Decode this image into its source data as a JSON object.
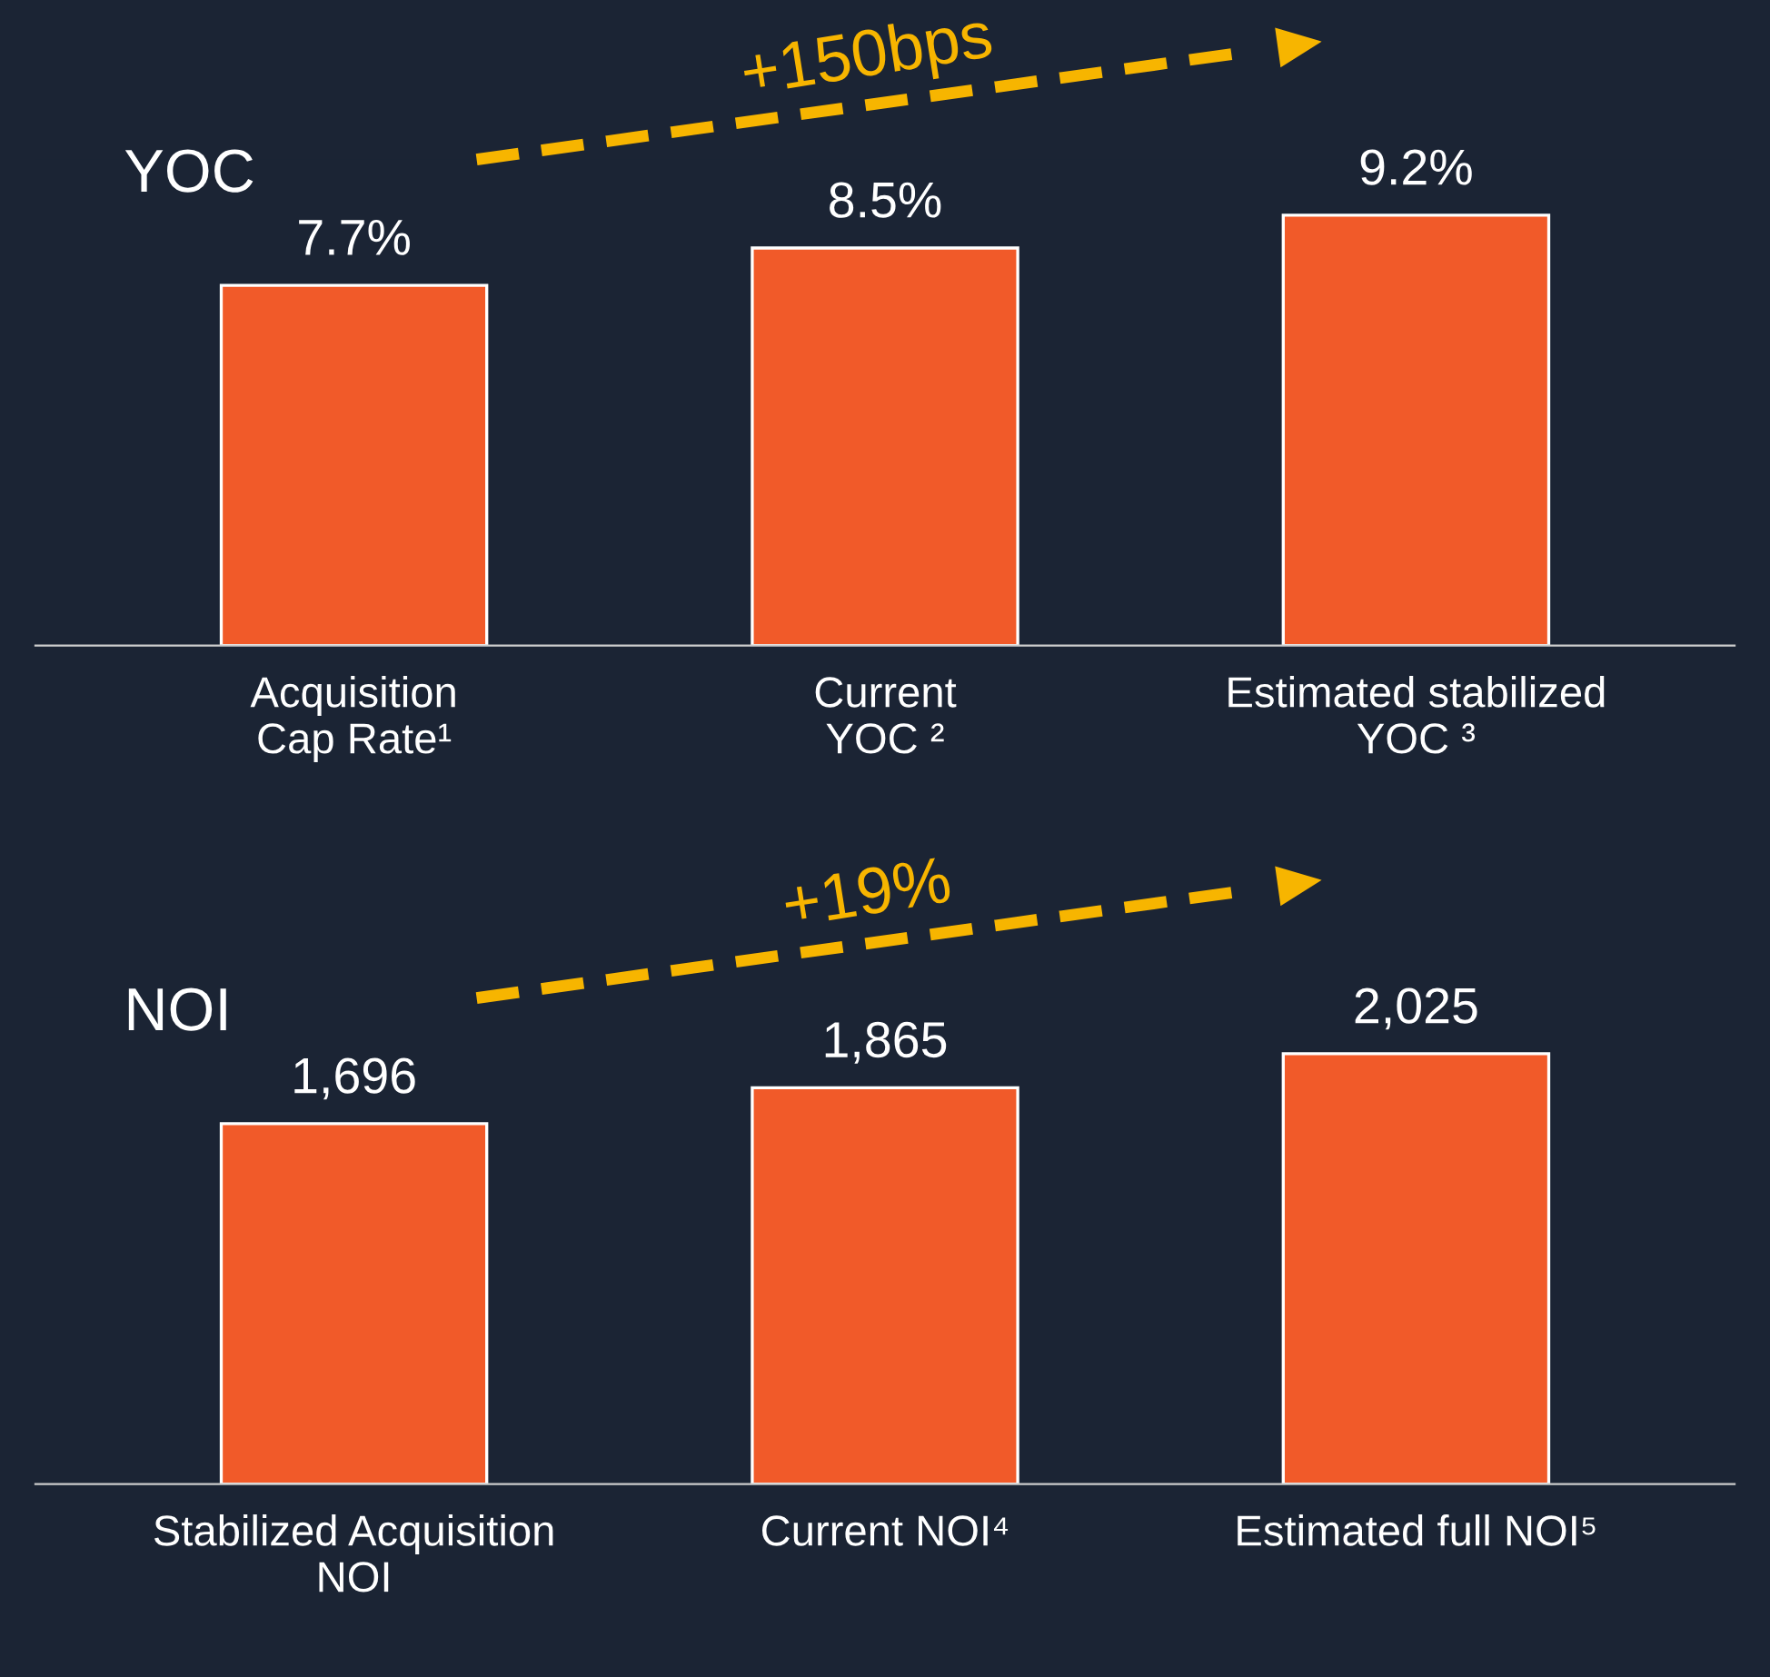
{
  "chart_data": [
    {
      "type": "bar",
      "title": "YOC",
      "categories": [
        "Acquisition\nCap Rate¹",
        "Current\nYOC ²",
        "Estimated stabilized\nYOC ³"
      ],
      "values": [
        7.7,
        8.5,
        9.2
      ],
      "value_labels": [
        "7.7%",
        "8.5%",
        "9.2%"
      ],
      "color": "#f15a29",
      "annotations": [
        "+150bps"
      ]
    },
    {
      "type": "bar",
      "title": "NOI",
      "categories": [
        "Stabilized Acquisition\nNOI",
        "Current NOI⁴",
        "Estimated full NOI⁵"
      ],
      "values": [
        1696,
        1865,
        2025
      ],
      "value_labels": [
        "1,696",
        "1,865",
        "2,025"
      ],
      "color": "#f15a29",
      "annotations": [
        "+19%"
      ]
    }
  ]
}
